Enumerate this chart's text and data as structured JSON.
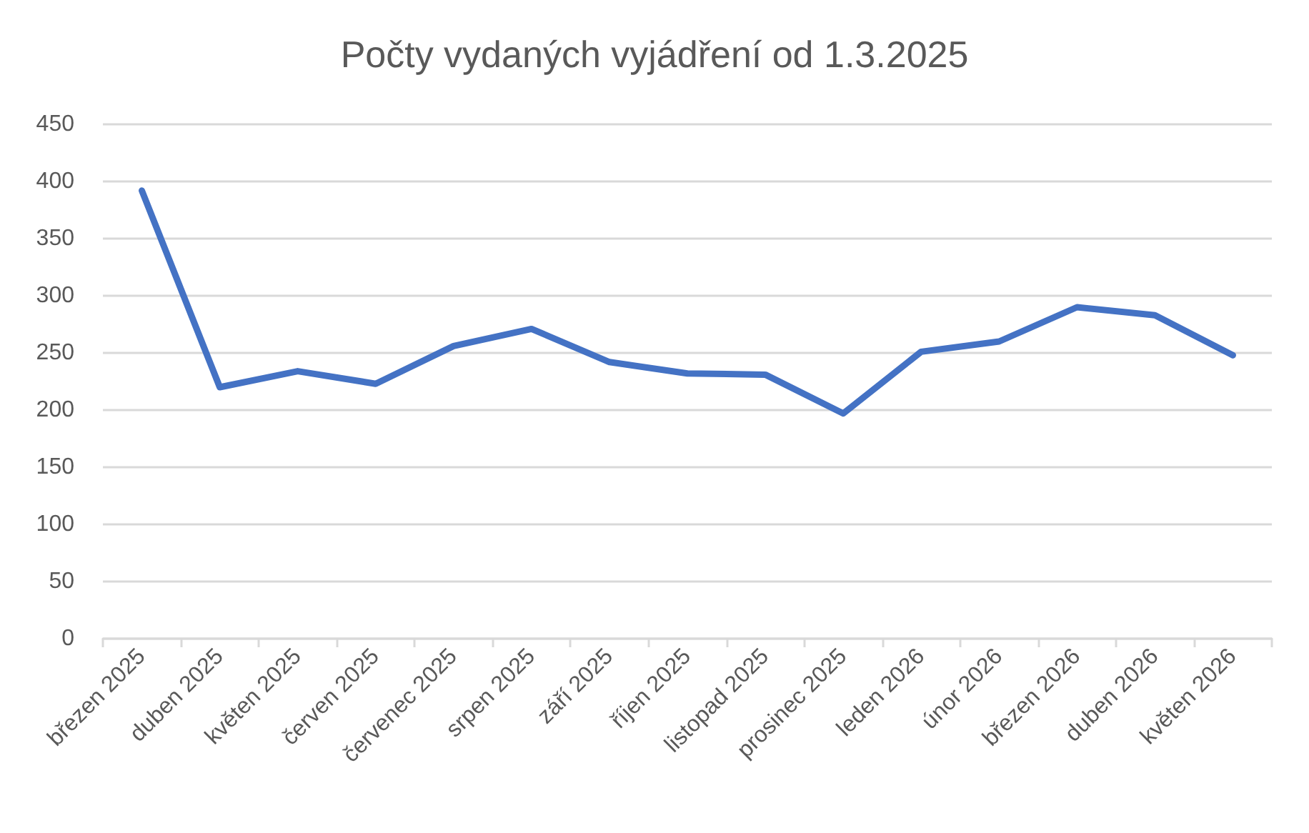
{
  "chart_data": {
    "type": "line",
    "title": "Počty vydaných vyjádření od 1.3.2025",
    "categories": [
      "březen 2025",
      "duben 2025",
      "květen 2025",
      "červen 2025",
      "červenec 2025",
      "srpen 2025",
      "září 2025",
      "říjen 2025",
      "listopad 2025",
      "prosinec 2025",
      "leden 2026",
      "únor 2026",
      "březen 2026",
      "duben 2026",
      "květen 2026"
    ],
    "series": [
      {
        "color": "#4472c4",
        "values": [
          392,
          220,
          234,
          223,
          256,
          271,
          242,
          232,
          231,
          197,
          251,
          260,
          290,
          283,
          248
        ]
      }
    ],
    "ylim": [
      0,
      450
    ],
    "yticks": [
      0,
      50,
      100,
      150,
      200,
      250,
      300,
      350,
      400,
      450
    ],
    "grid": "y",
    "marker": "none",
    "line_style": "solid"
  }
}
